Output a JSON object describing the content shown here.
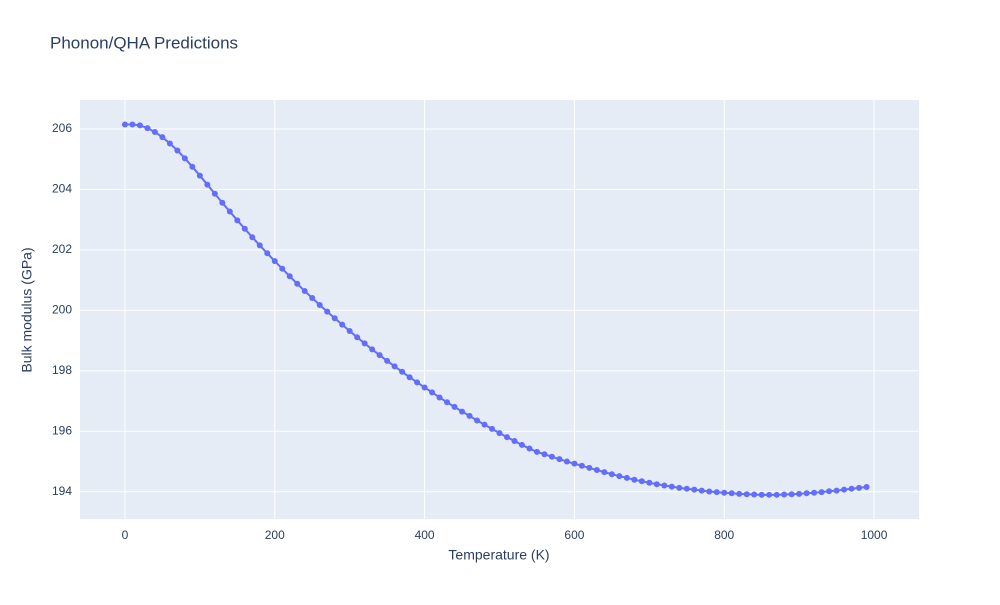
{
  "chart_data": {
    "type": "line",
    "title": "Phonon/QHA Predictions",
    "x_label": "Temperature (K)",
    "y_label": "Bulk modulus (GPa)",
    "x": [
      0,
      10,
      20,
      30,
      40,
      50,
      60,
      70,
      80,
      90,
      100,
      110,
      120,
      130,
      140,
      150,
      160,
      170,
      180,
      190,
      200,
      210,
      220,
      230,
      240,
      250,
      260,
      270,
      280,
      290,
      300,
      310,
      320,
      330,
      340,
      350,
      360,
      370,
      380,
      390,
      400,
      410,
      420,
      430,
      440,
      450,
      460,
      470,
      480,
      490,
      500,
      510,
      520,
      530,
      540,
      550,
      560,
      570,
      580,
      590,
      600,
      610,
      620,
      630,
      640,
      650,
      660,
      670,
      680,
      690,
      700,
      710,
      720,
      730,
      740,
      750,
      760,
      770,
      780,
      790,
      800,
      810,
      820,
      830,
      840,
      850,
      860,
      870,
      880,
      890,
      900,
      910,
      920,
      930,
      940,
      950,
      960,
      970,
      980,
      990
    ],
    "series": [
      {
        "name": "Bulk modulus",
        "color": "#636efa",
        "values": [
          206.15,
          206.15,
          206.12,
          206.03,
          205.9,
          205.73,
          205.52,
          205.29,
          205.03,
          204.75,
          204.46,
          204.16,
          203.86,
          203.56,
          203.27,
          202.98,
          202.7,
          202.42,
          202.15,
          201.89,
          201.63,
          201.38,
          201.13,
          200.88,
          200.64,
          200.41,
          200.18,
          199.96,
          199.74,
          199.53,
          199.32,
          199.11,
          198.91,
          198.71,
          198.52,
          198.33,
          198.15,
          197.97,
          197.79,
          197.62,
          197.45,
          197.29,
          197.12,
          196.96,
          196.81,
          196.65,
          196.51,
          196.36,
          196.22,
          196.08,
          195.94,
          195.81,
          195.68,
          195.55,
          195.43,
          195.32,
          195.24,
          195.16,
          195.08,
          195.0,
          194.93,
          194.86,
          194.79,
          194.72,
          194.65,
          194.58,
          194.52,
          194.46,
          194.4,
          194.35,
          194.3,
          194.25,
          194.21,
          194.17,
          194.13,
          194.1,
          194.07,
          194.04,
          194.01,
          193.99,
          193.97,
          193.95,
          193.93,
          193.92,
          193.91,
          193.9,
          193.9,
          193.9,
          193.91,
          193.92,
          193.93,
          193.95,
          193.97,
          193.99,
          194.02,
          194.04,
          194.07,
          194.1,
          194.13,
          194.16
        ]
      }
    ],
    "xlim": [
      -60,
      1060
    ],
    "xticks": [
      0,
      200,
      400,
      600,
      800,
      1000
    ],
    "ylim": [
      193.1,
      206.96
    ],
    "yticks": [
      194,
      196,
      198,
      200,
      202,
      204,
      206
    ],
    "grid": true
  }
}
